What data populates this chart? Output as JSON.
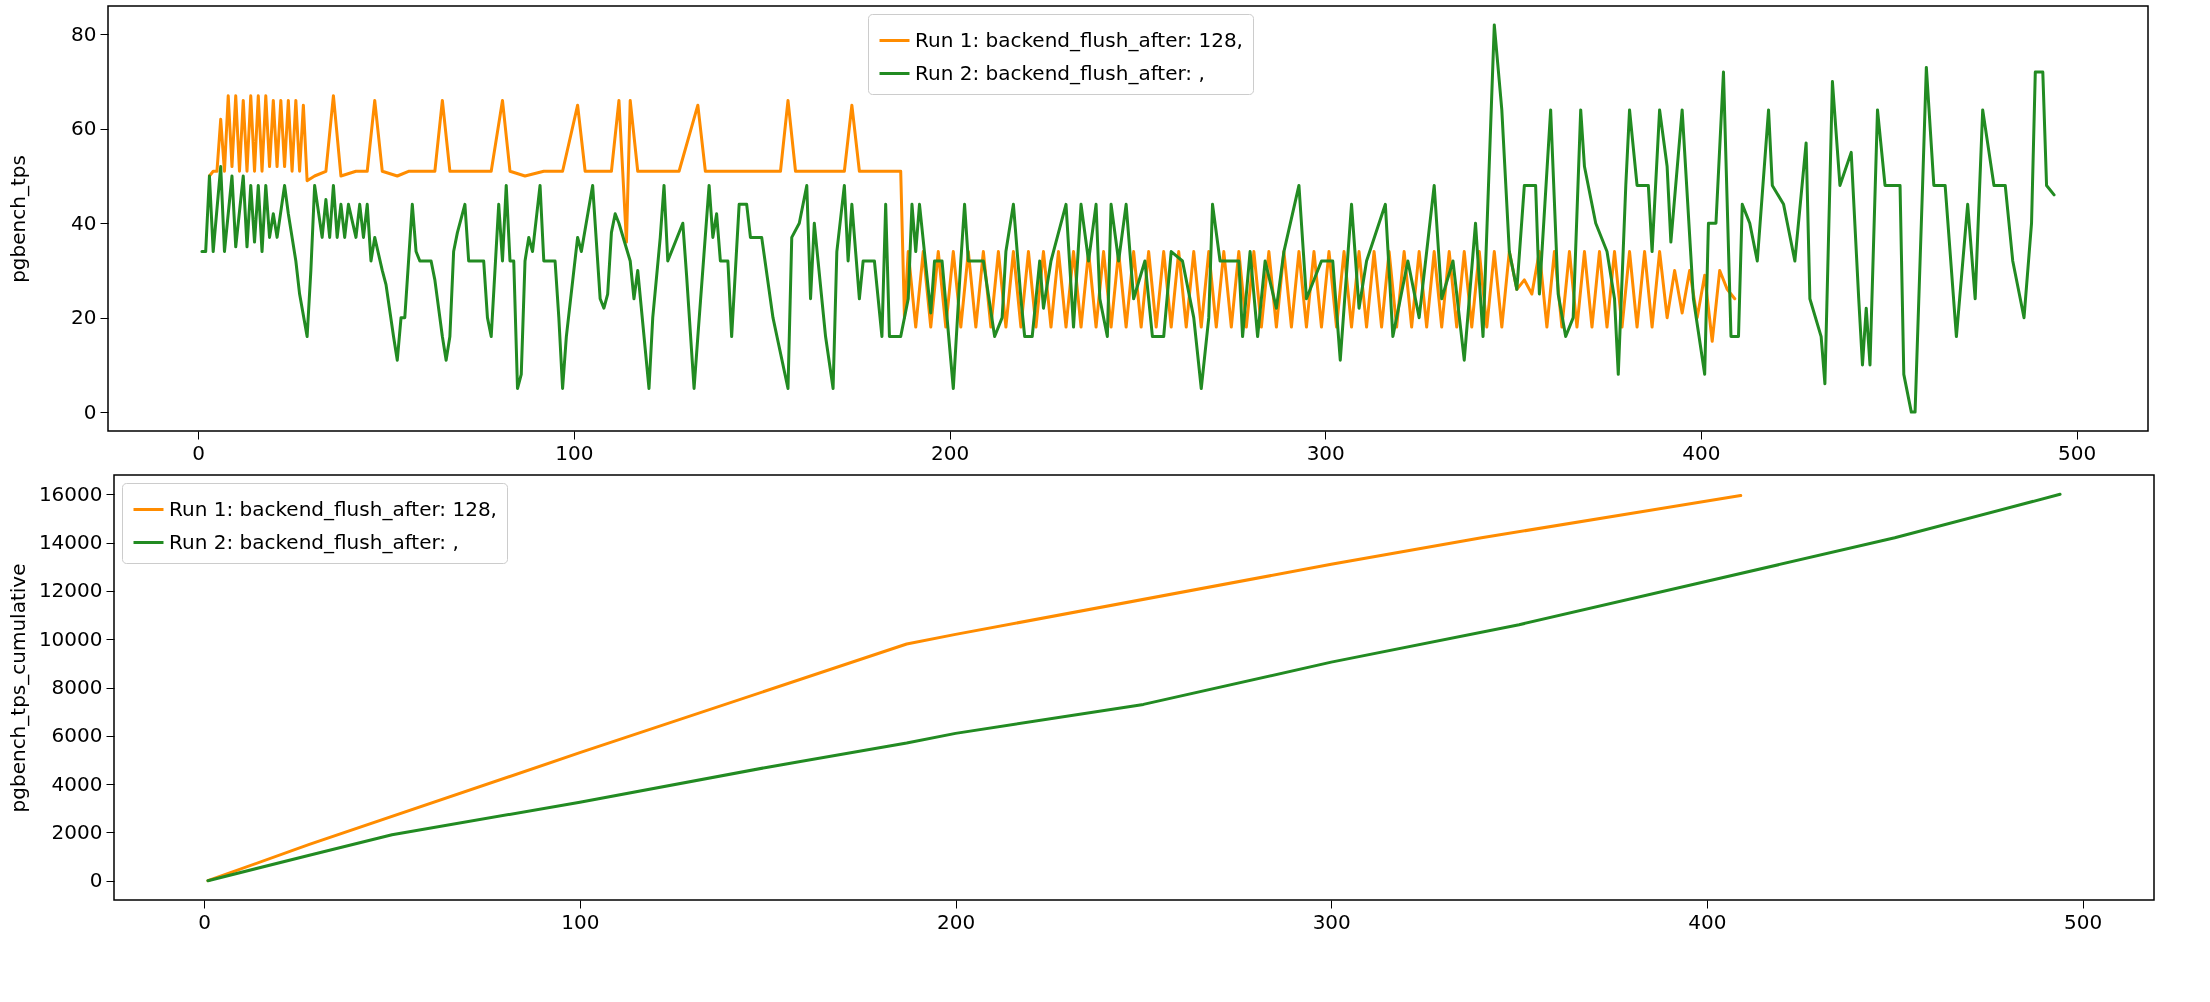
{
  "chart_data": [
    {
      "type": "line",
      "ylabel": "pgbench_tps",
      "xlim": [
        -24,
        519
      ],
      "ylim": [
        -4,
        86
      ],
      "xticks": [
        0,
        100,
        200,
        300,
        400,
        500
      ],
      "yticks": [
        0,
        20,
        40,
        60,
        80
      ],
      "legend": "top",
      "series": [
        {
          "name": "Run 1: backend_flush_after: 128,",
          "color": "#ff8c00",
          "x": [
            3,
            4,
            5,
            6,
            7,
            8,
            9,
            10,
            11,
            12,
            13,
            14,
            15,
            16,
            17,
            18,
            19,
            20,
            21,
            22,
            23,
            24,
            25,
            26,
            27,
            28,
            29,
            31,
            34,
            36,
            38,
            42,
            45,
            47,
            49,
            53,
            56,
            60,
            63,
            65,
            67,
            72,
            78,
            81,
            83,
            87,
            92,
            97,
            101,
            103,
            110,
            112,
            113,
            114,
            115,
            117,
            122,
            128,
            133,
            135,
            142,
            150,
            155,
            157,
            159,
            165,
            172,
            174,
            176,
            182,
            187,
            188,
            189,
            191,
            193,
            195,
            197,
            199,
            201,
            203,
            205,
            207,
            209,
            211,
            213,
            215,
            217,
            219,
            221,
            223,
            225,
            227,
            229,
            231,
            233,
            235,
            237,
            239,
            241,
            243,
            245,
            247,
            249,
            251,
            253,
            255,
            257,
            259,
            261,
            263,
            265,
            267,
            269,
            271,
            273,
            275,
            277,
            279,
            281,
            283,
            285,
            287,
            289,
            291,
            293,
            295,
            297,
            299,
            301,
            303,
            305,
            307,
            309,
            311,
            313,
            315,
            317,
            319,
            321,
            323,
            325,
            327,
            329,
            331,
            333,
            335,
            337,
            339,
            341,
            343,
            345,
            347,
            349,
            351,
            353,
            355,
            357,
            359,
            361,
            363,
            365,
            367,
            369,
            371,
            373,
            375,
            377,
            379,
            381,
            383,
            385,
            387,
            389,
            391,
            393,
            395,
            397,
            399,
            401,
            403,
            405,
            407,
            409
          ],
          "values": [
            50,
            51,
            51,
            62,
            51,
            67,
            52,
            67,
            51,
            66,
            51,
            67,
            51,
            67,
            51,
            67,
            52,
            66,
            52,
            66,
            52,
            66,
            51,
            66,
            51,
            65,
            49,
            50,
            51,
            67,
            50,
            51,
            51,
            66,
            51,
            50,
            51,
            51,
            51,
            66,
            51,
            51,
            51,
            66,
            51,
            50,
            51,
            51,
            65,
            51,
            51,
            66,
            51,
            36,
            66,
            51,
            51,
            51,
            65,
            51,
            51,
            51,
            51,
            66,
            51,
            51,
            51,
            65,
            51,
            51,
            51,
            20,
            34,
            18,
            34,
            18,
            34,
            18,
            34,
            18,
            34,
            18,
            34,
            18,
            34,
            18,
            34,
            18,
            34,
            18,
            34,
            18,
            34,
            18,
            34,
            18,
            34,
            18,
            34,
            18,
            34,
            18,
            34,
            18,
            34,
            18,
            34,
            18,
            34,
            18,
            34,
            18,
            34,
            18,
            34,
            18,
            34,
            18,
            34,
            18,
            34,
            18,
            34,
            18,
            34,
            18,
            34,
            18,
            34,
            18,
            34,
            18,
            34,
            18,
            34,
            18,
            34,
            18,
            34,
            18,
            34,
            18,
            34,
            18,
            34,
            18,
            34,
            18,
            34,
            18,
            34,
            18,
            34,
            26,
            28,
            25,
            34,
            18,
            34,
            18,
            34,
            18,
            34,
            18,
            34,
            18,
            34,
            18,
            34,
            18,
            34,
            18,
            34,
            20,
            30,
            21,
            30,
            20,
            29,
            15,
            30,
            26,
            24
          ]
        },
        {
          "name": "Run 2: backend_flush_after: ,",
          "color": "#228b22",
          "x": [
            1,
            2,
            3,
            4,
            6,
            7,
            9,
            10,
            12,
            13,
            14,
            15,
            16,
            17,
            18,
            19,
            20,
            21,
            23,
            24,
            26,
            27,
            29,
            30,
            31,
            33,
            34,
            35,
            36,
            37,
            38,
            39,
            40,
            42,
            43,
            44,
            45,
            46,
            47,
            49,
            50,
            52,
            53,
            54,
            55,
            57,
            58,
            59,
            62,
            63,
            65,
            66,
            67,
            68,
            69,
            71,
            72,
            76,
            77,
            78,
            80,
            81,
            82,
            83,
            84,
            85,
            86,
            87,
            88,
            89,
            91,
            92,
            95,
            96,
            97,
            98,
            100,
            101,
            102,
            105,
            107,
            108,
            109,
            110,
            111,
            112,
            115,
            116,
            117,
            120,
            121,
            123,
            124,
            125,
            129,
            130,
            132,
            133,
            136,
            137,
            138,
            139,
            141,
            142,
            144,
            146,
            147,
            150,
            153,
            157,
            158,
            160,
            162,
            163,
            164,
            165,
            167,
            169,
            170,
            172,
            173,
            174,
            176,
            177,
            180,
            182,
            183,
            184,
            187,
            189,
            190,
            191,
            192,
            195,
            196,
            198,
            201,
            203,
            204,
            205,
            209,
            212,
            214,
            215,
            217,
            219,
            220,
            222,
            224,
            225,
            227,
            231,
            233,
            235,
            237,
            239,
            240,
            242,
            243,
            245,
            247,
            249,
            252,
            254,
            257,
            259,
            262,
            265,
            267,
            269,
            270,
            272,
            277,
            278,
            280,
            282,
            284,
            287,
            289,
            293,
            295,
            299,
            302,
            304,
            307,
            309,
            311,
            316,
            318,
            322,
            325,
            329,
            331,
            334,
            337,
            340,
            342,
            345,
            347,
            349,
            351,
            353,
            356,
            357,
            360,
            362,
            364,
            366,
            368,
            369,
            372,
            375,
            377,
            378,
            380,
            381,
            383,
            386,
            387,
            389,
            391,
            392,
            395,
            398,
            401,
            402,
            404,
            406,
            408,
            410,
            411,
            413,
            415,
            418,
            419,
            422,
            423,
            425,
            428,
            429,
            432,
            433,
            435,
            437,
            440,
            442,
            443,
            444,
            445,
            447,
            449,
            453,
            454,
            456,
            457,
            459,
            460,
            462,
            465,
            468,
            471,
            473,
            475,
            478,
            481,
            483,
            485,
            486,
            488,
            489,
            491,
            492,
            494
          ],
          "values": [
            34,
            34,
            50,
            34,
            52,
            34,
            50,
            35,
            50,
            35,
            48,
            36,
            48,
            34,
            48,
            37,
            42,
            37,
            48,
            42,
            32,
            25,
            16,
            30,
            48,
            37,
            45,
            37,
            48,
            37,
            44,
            37,
            44,
            37,
            44,
            37,
            44,
            32,
            37,
            30,
            27,
            16,
            11,
            20,
            20,
            44,
            34,
            32,
            32,
            28,
            16,
            11,
            16,
            34,
            38,
            44,
            32,
            32,
            20,
            16,
            44,
            32,
            48,
            32,
            32,
            5,
            8,
            32,
            37,
            34,
            48,
            32,
            32,
            20,
            5,
            16,
            30,
            37,
            34,
            48,
            24,
            22,
            25,
            38,
            42,
            40,
            32,
            24,
            30,
            5,
            20,
            37,
            48,
            32,
            40,
            29,
            5,
            16,
            48,
            37,
            42,
            32,
            32,
            16,
            44,
            44,
            37,
            37,
            20,
            5,
            37,
            40,
            48,
            24,
            40,
            32,
            16,
            5,
            34,
            48,
            32,
            44,
            24,
            32,
            32,
            16,
            44,
            16,
            16,
            24,
            44,
            34,
            44,
            21,
            32,
            32,
            5,
            32,
            44,
            32,
            32,
            16,
            20,
            34,
            44,
            24,
            16,
            16,
            32,
            22,
            32,
            44,
            18,
            44,
            32,
            44,
            24,
            16,
            44,
            32,
            44,
            24,
            32,
            16,
            16,
            34,
            32,
            20,
            5,
            20,
            44,
            32,
            32,
            16,
            34,
            16,
            32,
            22,
            34,
            48,
            24,
            32,
            32,
            11,
            44,
            22,
            32,
            44,
            16,
            32,
            20,
            48,
            24,
            32,
            11,
            40,
            16,
            82,
            64,
            34,
            26,
            48,
            48,
            25,
            64,
            25,
            16,
            20,
            64,
            52,
            40,
            34,
            24,
            8,
            48,
            64,
            48,
            48,
            34,
            64,
            52,
            36,
            64,
            24,
            8,
            40,
            40,
            72,
            16,
            16,
            44,
            40,
            32,
            64,
            48,
            44,
            40,
            32,
            57,
            24,
            16,
            6,
            70,
            48,
            55,
            24,
            10,
            22,
            10,
            64,
            48,
            48,
            8,
            0,
            0,
            48,
            73,
            48,
            48,
            16,
            44,
            24,
            64,
            48,
            48,
            32,
            24,
            20,
            40,
            72,
            72,
            48,
            46
          ]
        }
      ]
    },
    {
      "type": "line",
      "ylabel": "pgbench_tps_cumulative",
      "xlim": [
        -24,
        519
      ],
      "ylim": [
        -800,
        16800
      ],
      "xticks": [
        0,
        100,
        200,
        300,
        400,
        500
      ],
      "yticks": [
        0,
        2000,
        4000,
        6000,
        8000,
        10000,
        12000,
        14000,
        16000
      ],
      "legend": "top left",
      "series": [
        {
          "name": "Run 1: backend_flush_after: 128,",
          "color": "#ff8c00",
          "x": [
            1,
            28,
            100,
            187,
            200,
            300,
            340,
            409
          ],
          "values": [
            0,
            1500,
            5300,
            9800,
            10200,
            13100,
            14200,
            15950
          ]
        },
        {
          "name": "Run 2: backend_flush_after: ,",
          "color": "#228b22",
          "x": [
            1,
            28,
            50,
            100,
            150,
            187,
            200,
            250,
            300,
            350,
            400,
            450,
            494
          ],
          "values": [
            0,
            1050,
            1900,
            3250,
            4700,
            5700,
            6100,
            7300,
            9050,
            10600,
            12400,
            14200,
            16000
          ]
        }
      ]
    }
  ]
}
